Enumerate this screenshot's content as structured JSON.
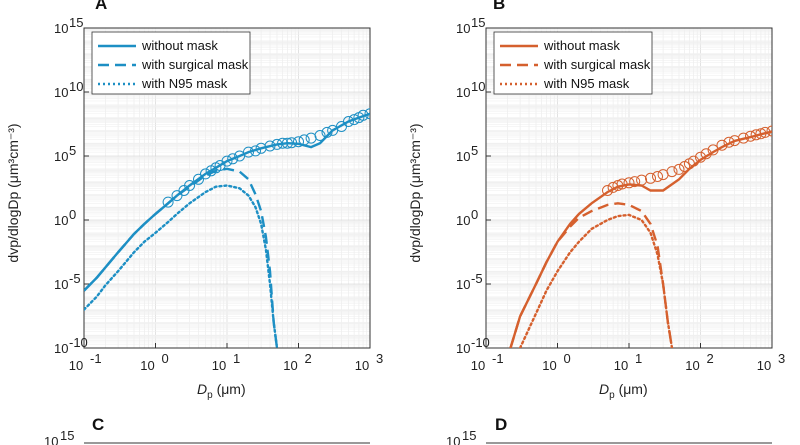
{
  "chart_data": [
    {
      "panel": "A",
      "type": "line",
      "color": "#1d8fc4",
      "xscale": "log",
      "yscale": "log",
      "xlim": [
        0.1,
        1000
      ],
      "ylim": [
        1e-10,
        1000000000000000.0
      ],
      "xlabel_main": "D",
      "xlabel_sub": "p",
      "xlabel_unit": "(μm)",
      "ylabel": "dvp/dlogDp (μm³cm⁻³)",
      "grid": "minor log grid",
      "legend_position": "top-left",
      "x_ticks": [
        0.1,
        1,
        10,
        100,
        1000
      ],
      "y_ticks": [
        1e-10,
        1e-05,
        1,
        100000.0,
        10000000000.0,
        1000000000000000.0
      ],
      "series": [
        {
          "name": "without mask",
          "style": "solid",
          "x": [
            0.1,
            0.15,
            0.2,
            0.3,
            0.5,
            0.7,
            1,
            1.5,
            2,
            3,
            5,
            7,
            10,
            15,
            20,
            30,
            50,
            70,
            100,
            150,
            200,
            300,
            500,
            700,
            1000
          ],
          "y": [
            3e-06,
            3e-05,
            0.0002,
            0.003,
            0.08,
            0.5,
            3,
            20,
            80,
            500,
            4000,
            12000,
            40000,
            100000,
            200000,
            400000,
            800000,
            1000000,
            900000,
            500000,
            1000000,
            10000000,
            50000000,
            100000000,
            200000000
          ]
        },
        {
          "name": "with surgical mask",
          "style": "dashed",
          "x": [
            0.1,
            0.15,
            0.2,
            0.3,
            0.5,
            0.7,
            1,
            1.5,
            2,
            3,
            5,
            7,
            10,
            15,
            20,
            25,
            30,
            35,
            40,
            45,
            50
          ],
          "y": [
            3e-06,
            3e-05,
            0.0002,
            0.003,
            0.08,
            0.5,
            3,
            20,
            80,
            400,
            3000,
            7000,
            10000,
            6000,
            1500,
            100,
            5,
            0.05,
            0.0001,
            1e-08,
            1e-10
          ]
        },
        {
          "name": "with N95 mask",
          "style": "dotted",
          "x": [
            0.1,
            0.15,
            0.2,
            0.3,
            0.5,
            0.7,
            1,
            1.5,
            2,
            3,
            5,
            7,
            10,
            15,
            20,
            25,
            30,
            35,
            40,
            45,
            50
          ],
          "y": [
            1e-07,
            1e-06,
            8e-06,
            0.0001,
            0.003,
            0.02,
            0.1,
            0.7,
            3,
            20,
            150,
            400,
            500,
            300,
            80,
            10,
            0.5,
            0.005,
            1e-05,
            1e-08,
            1e-10
          ]
        }
      ],
      "circle_markers": {
        "x": [
          1.5,
          2,
          2.5,
          3,
          4,
          5,
          6,
          7,
          8,
          10,
          12,
          15,
          20,
          25,
          30,
          40,
          50,
          60,
          70,
          80,
          100,
          120,
          150,
          200,
          250,
          300,
          400,
          500,
          600,
          700,
          800,
          1000
        ],
        "y": [
          25,
          80,
          200,
          500,
          1500,
          4000,
          7000,
          12000,
          18000,
          40000,
          60000,
          100000,
          200000,
          250000,
          400000,
          600000,
          800000,
          1000000,
          1000000,
          1100000,
          1300000,
          1800000,
          2500000,
          4000000,
          7000000,
          10000000,
          20000000,
          50000000,
          70000000,
          100000000,
          150000000,
          200000000
        ]
      }
    },
    {
      "panel": "B",
      "type": "line",
      "color": "#d5602e",
      "xscale": "log",
      "yscale": "log",
      "xlim": [
        0.1,
        1000
      ],
      "ylim": [
        1e-10,
        1000000000000000.0
      ],
      "xlabel_main": "D",
      "xlabel_sub": "p",
      "xlabel_unit": "(μm)",
      "ylabel": "dvp/dlogDp (μm³cm⁻³)",
      "grid": "minor log grid",
      "legend_position": "top-left",
      "x_ticks": [
        0.1,
        1,
        10,
        100,
        1000
      ],
      "y_ticks": [
        1e-10,
        1e-05,
        1,
        100000.0,
        10000000000.0,
        1000000000000000.0
      ],
      "series": [
        {
          "name": "without mask",
          "style": "solid",
          "x": [
            0.22,
            0.3,
            0.5,
            0.7,
            1,
            1.5,
            2,
            3,
            5,
            7,
            10,
            15,
            20,
            30,
            50,
            70,
            100,
            150,
            200,
            300,
            500,
            700,
            1000
          ],
          "y": [
            1e-10,
            3e-08,
            1e-05,
            0.0005,
            0.02,
            0.5,
            3,
            20,
            150,
            400,
            600,
            500,
            200,
            200,
            1500,
            10000,
            50000,
            200000,
            500000,
            1500000,
            3000000,
            5000000,
            8000000
          ]
        },
        {
          "name": "with surgical mask",
          "style": "dashed",
          "x": [
            0.22,
            0.3,
            0.5,
            0.7,
            1,
            1.5,
            2,
            3,
            5,
            7,
            10,
            15,
            20,
            25,
            30,
            35,
            40
          ],
          "y": [
            1e-10,
            3e-08,
            1e-05,
            0.0005,
            0.02,
            0.3,
            1.5,
            5,
            15,
            20,
            15,
            5,
            0.5,
            0.01,
            1e-05,
            1e-08,
            1e-10
          ]
        },
        {
          "name": "with N95 mask",
          "style": "dotted",
          "x": [
            0.3,
            0.5,
            0.7,
            1,
            1.5,
            2,
            3,
            5,
            7,
            10,
            15,
            20,
            25,
            30,
            35,
            40
          ],
          "y": [
            1e-10,
            5e-08,
            3e-06,
            0.0001,
            0.003,
            0.02,
            0.2,
            1,
            2,
            2.5,
            1,
            0.1,
            0.002,
            1e-05,
            1e-08,
            1e-10
          ]
        }
      ],
      "circle_markers": {
        "x": [
          5,
          6,
          7,
          8,
          10,
          12,
          15,
          20,
          25,
          30,
          40,
          50,
          60,
          70,
          80,
          100,
          120,
          150,
          200,
          250,
          300,
          400,
          500,
          600,
          700,
          800,
          1000
        ],
        "y": [
          200,
          350,
          500,
          650,
          800,
          1000,
          1300,
          1800,
          2500,
          3500,
          6000,
          9000,
          15000,
          25000,
          40000,
          80000,
          150000,
          300000,
          700000,
          1200000,
          1600000,
          2500000,
          3500000,
          4500000,
          5500000,
          7000000,
          9000000
        ]
      }
    }
  ],
  "panels": {
    "a": "A",
    "b": "B",
    "c": "C",
    "d": "D"
  },
  "labels": {
    "x_tick_labels": [
      "10",
      "10",
      "10",
      "10",
      "10"
    ],
    "x_tick_exps": [
      "-1",
      "0",
      "1",
      "2",
      "3"
    ],
    "y_tick_labels": [
      "10",
      "10",
      "10",
      "10",
      "10",
      "10"
    ],
    "y_tick_exps": [
      "-10",
      "-5",
      "0",
      "5",
      "10",
      "15"
    ],
    "partial_y_tick": "10",
    "partial_y_exp": "15"
  }
}
